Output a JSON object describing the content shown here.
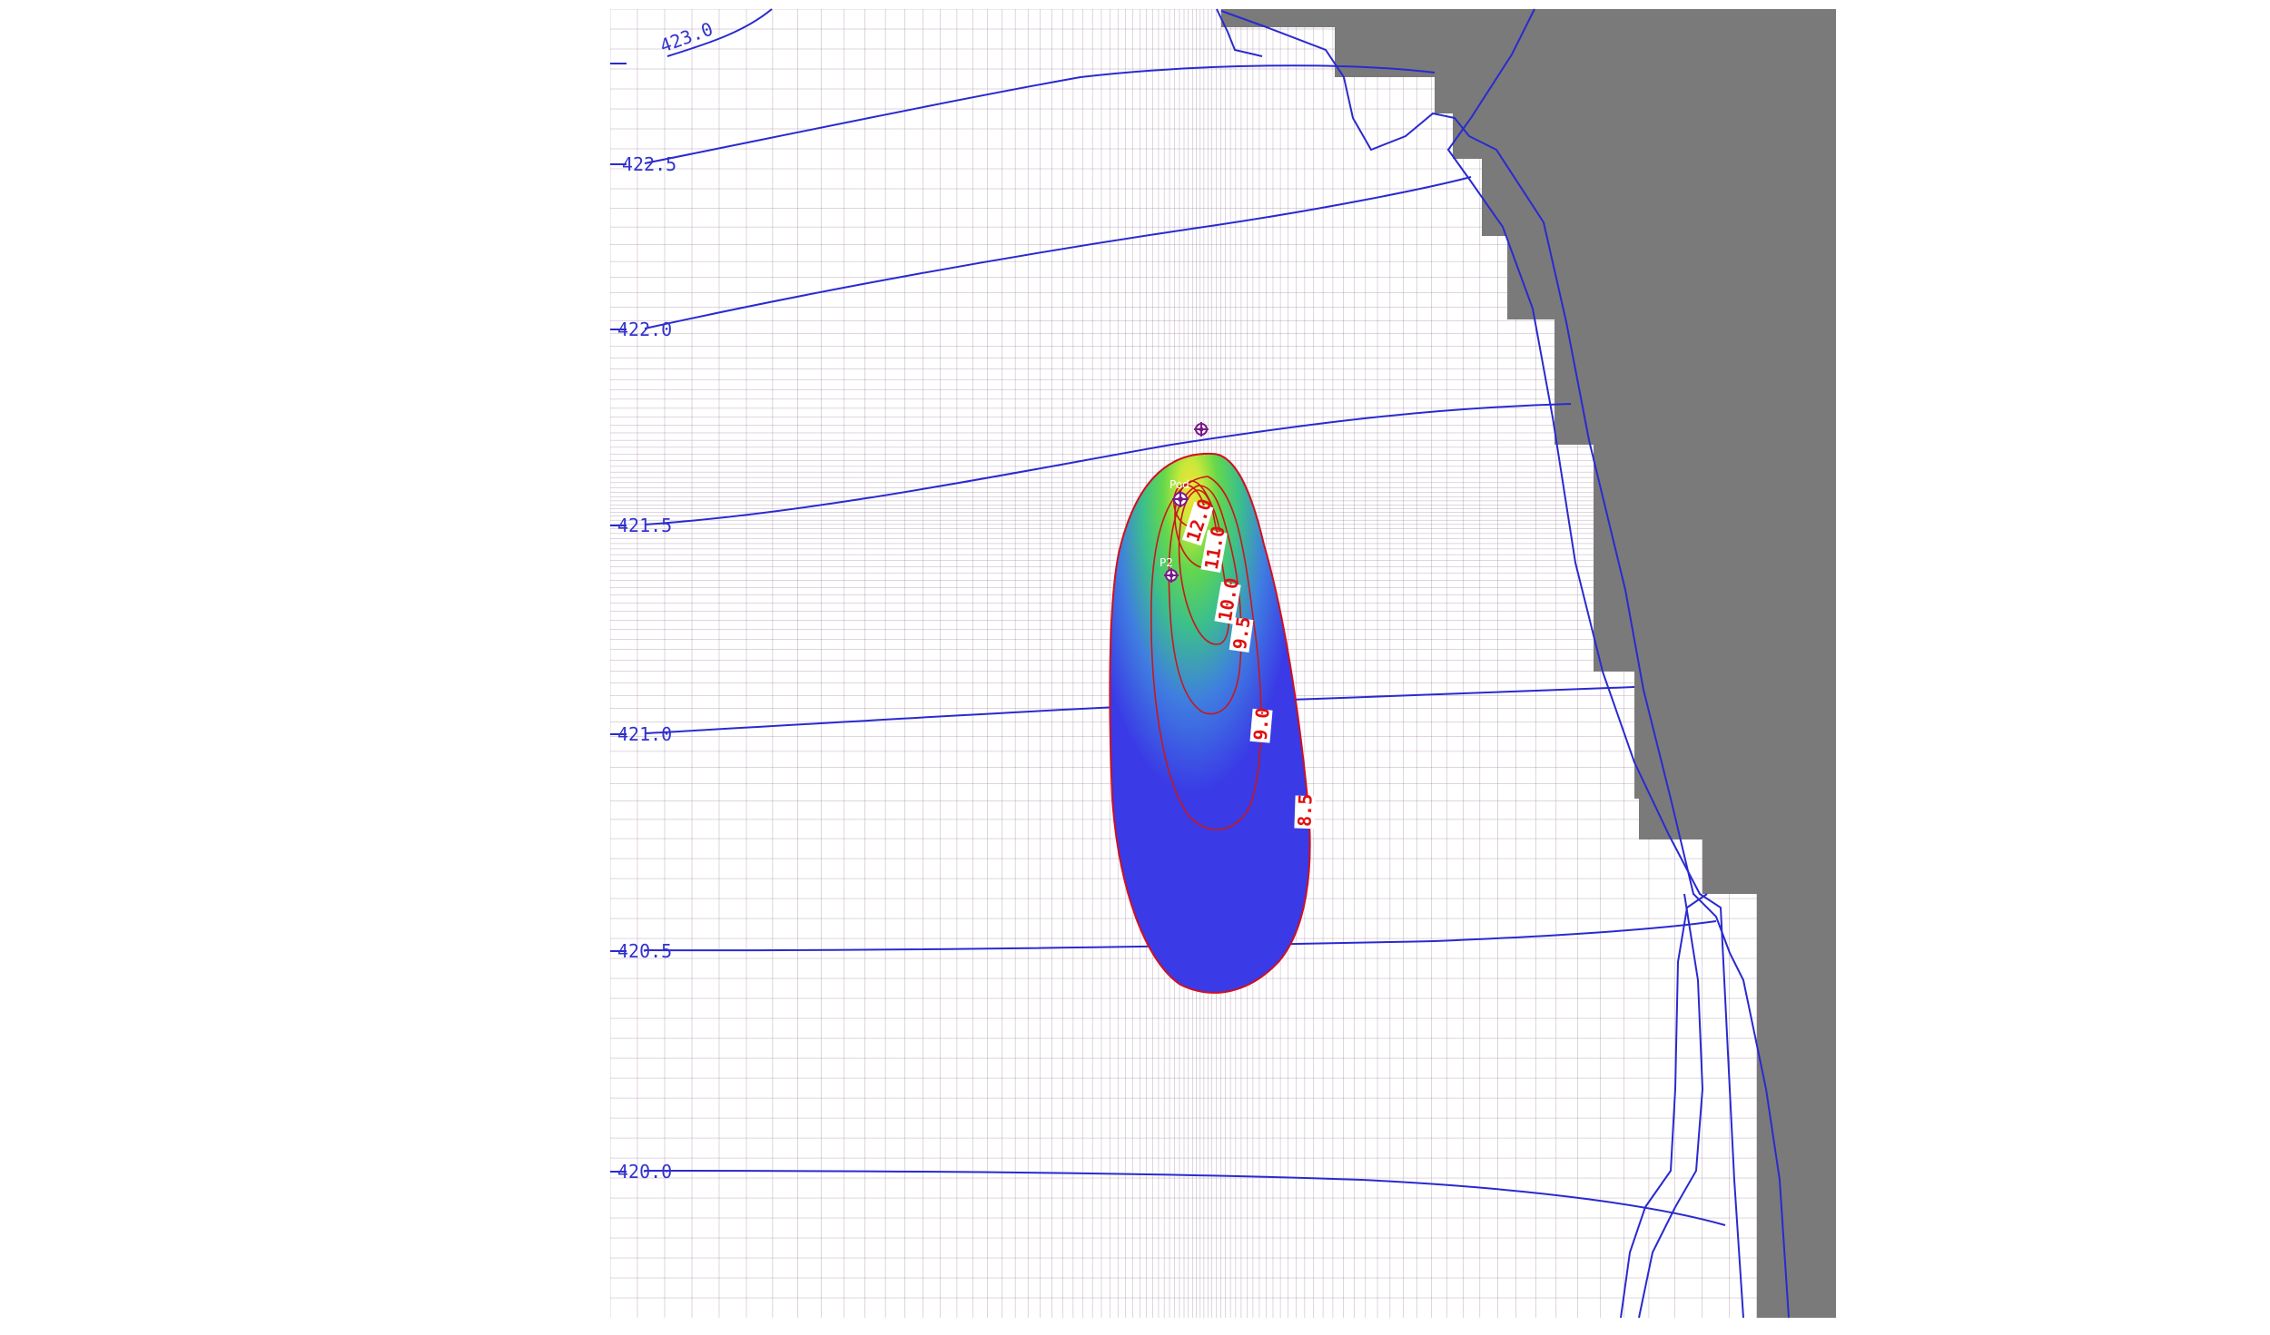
{
  "map": {
    "head_contours": [
      {
        "label": "423.0"
      },
      {
        "label": "422.5"
      },
      {
        "label": "422.0"
      },
      {
        "label": "421.5"
      },
      {
        "label": "421.0"
      },
      {
        "label": "420.5"
      },
      {
        "label": "420.0"
      }
    ],
    "plume_contours": [
      {
        "label": "12.0"
      },
      {
        "label": "11.0"
      },
      {
        "label": "10.0"
      },
      {
        "label": "9.5"
      },
      {
        "label": "9.0"
      },
      {
        "label": "8.5"
      }
    ],
    "points": [
      {
        "label": ""
      },
      {
        "label": "Pod"
      },
      {
        "label": "P2"
      }
    ],
    "colors": {
      "grid_line": "#8a6a8a",
      "head_contour": "#2222cc",
      "plume_contour": "#cc1111",
      "inactive_cells": "#7a7a7a",
      "plume_low": "#3a3ae6",
      "plume_mid": "#3fc97a",
      "plume_high": "#e8e83a"
    }
  }
}
